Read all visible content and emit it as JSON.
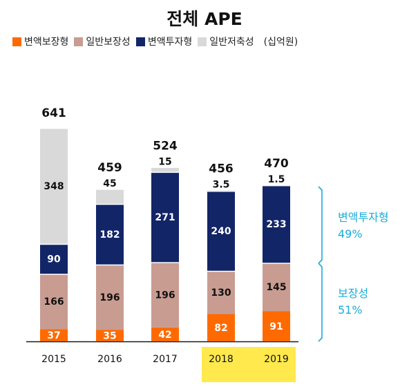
{
  "chart_data": {
    "type": "bar",
    "stacked": true,
    "title": "전체 APE",
    "unit": "(십억원)",
    "categories": [
      "2015",
      "2016",
      "2017",
      "2018",
      "2019"
    ],
    "highlighted_categories": [
      "2018",
      "2019"
    ],
    "totals": [
      641,
      459,
      524,
      456,
      470
    ],
    "series": [
      {
        "name": "변액보장형",
        "color": "#FF6A00",
        "values": [
          37,
          35,
          42,
          82,
          91
        ]
      },
      {
        "name": "일반보장성",
        "color": "#C99C92",
        "values": [
          166,
          196,
          196,
          130,
          145
        ]
      },
      {
        "name": "변액투자형",
        "color": "#122567",
        "values": [
          90,
          182,
          271,
          240,
          233
        ]
      },
      {
        "name": "일반저축성",
        "color": "#D9D9D9",
        "values": [
          348,
          45,
          15,
          3.5,
          1.5
        ]
      }
    ],
    "value_labels": [
      [
        "37",
        "166",
        "90",
        "348"
      ],
      [
        "35",
        "196",
        "182",
        "45"
      ],
      [
        "42",
        "196",
        "271",
        "15"
      ],
      [
        "82",
        "130",
        "240",
        "3.5"
      ],
      [
        "91",
        "145",
        "233",
        "1.5"
      ]
    ],
    "annotations": [
      {
        "label": "변액투자형",
        "value": "49%",
        "color": "#1AACD6"
      },
      {
        "label": "보장성",
        "value": "51%",
        "color": "#1AACD6"
      }
    ],
    "highlight_color": "#FFE94D"
  }
}
